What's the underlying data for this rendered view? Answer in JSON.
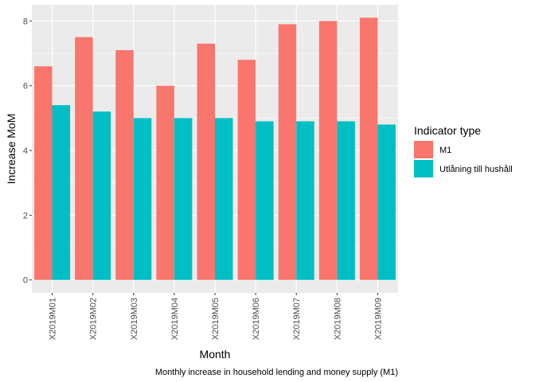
{
  "chart_data": {
    "type": "bar",
    "categories": [
      "X2019M01",
      "X2019M02",
      "X2019M03",
      "X2019M04",
      "X2019M05",
      "X2019M06",
      "X2019M07",
      "X2019M08",
      "X2019M09"
    ],
    "series": [
      {
        "name": "M1",
        "color": "#F8766D",
        "values": [
          6.6,
          7.5,
          7.1,
          6.0,
          7.3,
          6.8,
          7.9,
          8.0,
          8.1
        ]
      },
      {
        "name": "Utlåning till hushåll",
        "color": "#00BFC4",
        "values": [
          5.4,
          5.2,
          5.0,
          5.0,
          5.0,
          4.9,
          4.9,
          4.9,
          4.8
        ]
      }
    ],
    "xlabel": "Month",
    "ylabel": "Increase MoM",
    "ylim": [
      -0.4,
      8.5
    ],
    "yticks": [
      0,
      2,
      4,
      6,
      8
    ],
    "legend_title": "Indicator type",
    "legend_position": "right",
    "caption": "Monthly increase in household lending and money supply (M1)",
    "grid": true,
    "panel_background": "#EBEBEB"
  }
}
